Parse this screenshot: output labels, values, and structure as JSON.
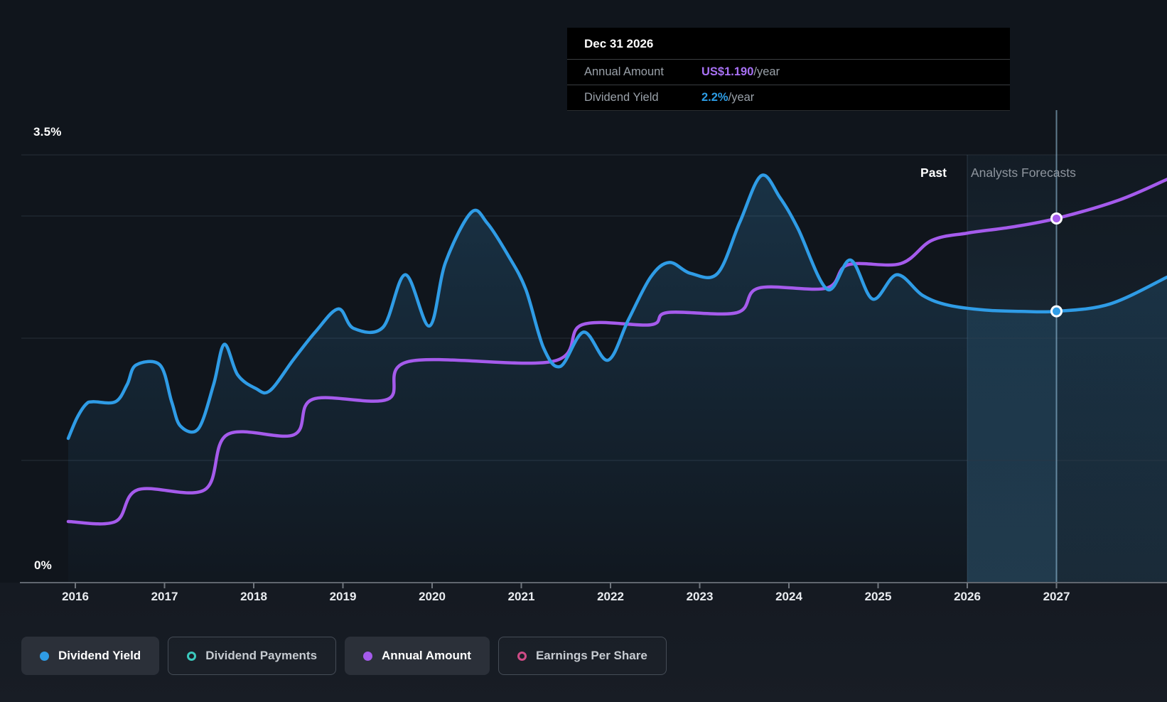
{
  "tooltip": {
    "title": "Dec 31 2026",
    "rows": [
      {
        "label": "Annual Amount",
        "value": "US$1.190",
        "suffix": "/year",
        "color": "#a871f5"
      },
      {
        "label": "Dividend Yield",
        "value": "2.2%",
        "suffix": "/year",
        "color": "#2d9de5"
      }
    ]
  },
  "chart_data": {
    "type": "area",
    "ylabel_top": "3.5%",
    "ylabel_bottom": "0%",
    "ylim": [
      0,
      3.5
    ],
    "grid_values": [
      3.5,
      3.0,
      2.0,
      1.0
    ],
    "x_ticks": [
      2016,
      2017,
      2018,
      2019,
      2020,
      2021,
      2022,
      2023,
      2024,
      2025,
      2026,
      2027
    ],
    "xlim": [
      2015.92,
      2028.24
    ],
    "past_label": "Past",
    "forecast_label": "Analysts Forecasts",
    "divider_year": 2026,
    "hover_year": 2027,
    "legend_position": "bottom",
    "series": [
      {
        "name": "Dividend Yield",
        "color": "#2f9ce6",
        "style": "line+area",
        "unit": "percent",
        "marker": {
          "x": 2027,
          "y": 2.22,
          "label": "2.2%/year"
        },
        "points": [
          [
            2015.92,
            1.18
          ],
          [
            2016.02,
            1.35
          ],
          [
            2016.12,
            1.46
          ],
          [
            2016.2,
            1.48
          ],
          [
            2016.45,
            1.48
          ],
          [
            2016.58,
            1.62
          ],
          [
            2016.68,
            1.78
          ],
          [
            2016.95,
            1.78
          ],
          [
            2017.08,
            1.48
          ],
          [
            2017.18,
            1.28
          ],
          [
            2017.38,
            1.26
          ],
          [
            2017.55,
            1.62
          ],
          [
            2017.67,
            1.95
          ],
          [
            2017.82,
            1.7
          ],
          [
            2018.02,
            1.59
          ],
          [
            2018.18,
            1.57
          ],
          [
            2018.45,
            1.83
          ],
          [
            2018.7,
            2.06
          ],
          [
            2018.95,
            2.24
          ],
          [
            2019.12,
            2.08
          ],
          [
            2019.45,
            2.09
          ],
          [
            2019.7,
            2.52
          ],
          [
            2019.97,
            2.1
          ],
          [
            2020.15,
            2.62
          ],
          [
            2020.44,
            3.03
          ],
          [
            2020.62,
            2.94
          ],
          [
            2020.85,
            2.68
          ],
          [
            2021.05,
            2.4
          ],
          [
            2021.25,
            1.92
          ],
          [
            2021.44,
            1.77
          ],
          [
            2021.7,
            2.05
          ],
          [
            2021.97,
            1.82
          ],
          [
            2022.2,
            2.15
          ],
          [
            2022.45,
            2.5
          ],
          [
            2022.66,
            2.62
          ],
          [
            2022.9,
            2.53
          ],
          [
            2023.2,
            2.53
          ],
          [
            2023.45,
            2.95
          ],
          [
            2023.69,
            3.33
          ],
          [
            2023.9,
            3.15
          ],
          [
            2024.1,
            2.9
          ],
          [
            2024.43,
            2.4
          ],
          [
            2024.69,
            2.64
          ],
          [
            2024.94,
            2.32
          ],
          [
            2025.21,
            2.52
          ],
          [
            2025.5,
            2.35
          ],
          [
            2025.79,
            2.27
          ],
          [
            2026.2,
            2.23
          ],
          [
            2026.6,
            2.22
          ],
          [
            2027.0,
            2.22
          ],
          [
            2027.6,
            2.28
          ],
          [
            2028.24,
            2.5
          ]
        ]
      },
      {
        "name": "Annual Amount",
        "color": "#a55bec",
        "style": "line",
        "unit": "axis-units",
        "marker": {
          "x": 2027,
          "y": 2.98,
          "label": "US$1.190/year"
        },
        "points": [
          [
            2015.92,
            0.5
          ],
          [
            2016.45,
            0.5
          ],
          [
            2016.7,
            0.76
          ],
          [
            2017.45,
            0.76
          ],
          [
            2017.7,
            1.21
          ],
          [
            2018.45,
            1.21
          ],
          [
            2018.66,
            1.5
          ],
          [
            2019.5,
            1.5
          ],
          [
            2019.74,
            1.81
          ],
          [
            2021.35,
            1.81
          ],
          [
            2021.68,
            2.11
          ],
          [
            2022.45,
            2.11
          ],
          [
            2022.64,
            2.21
          ],
          [
            2023.42,
            2.21
          ],
          [
            2023.66,
            2.41
          ],
          [
            2024.42,
            2.41
          ],
          [
            2024.66,
            2.6
          ],
          [
            2025.25,
            2.61
          ],
          [
            2025.6,
            2.8
          ],
          [
            2026.0,
            2.86
          ],
          [
            2026.5,
            2.91
          ],
          [
            2027.0,
            2.98
          ],
          [
            2027.7,
            3.13
          ],
          [
            2028.24,
            3.3
          ]
        ]
      }
    ]
  },
  "legend": [
    {
      "label": "Dividend Yield",
      "color": "#2f9ce6",
      "style": "filled",
      "active": true
    },
    {
      "label": "Dividend Payments",
      "color": "#3bc9bd",
      "style": "hollow",
      "active": false
    },
    {
      "label": "Annual Amount",
      "color": "#a55bec",
      "style": "filled",
      "active": true
    },
    {
      "label": "Earnings Per Share",
      "color": "#cf4b86",
      "style": "hollow",
      "active": false
    }
  ],
  "colors": {
    "background": "#11161d",
    "tooltip_background": "#000000",
    "gridline": "#262e38",
    "axis_line": "#60666f",
    "past_label": "#ffffff",
    "forecast_label": "#8f969f"
  }
}
